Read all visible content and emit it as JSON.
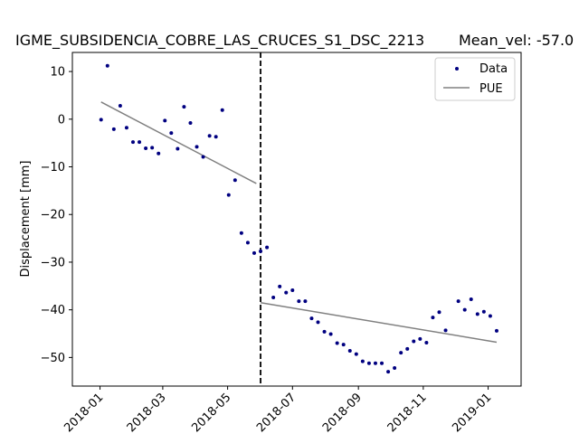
{
  "chart_data": {
    "type": "scatter",
    "title": "IGME_SUBSIDENCIA_COBRE_LAS_CRUCES_S1_DSC_2213",
    "subtitle": "Mean_vel: -57.0",
    "xlabel": "",
    "ylabel": "Displacement [mm]",
    "xlim": [
      "2017-12-06",
      "2019-02-01"
    ],
    "ylim": [
      -56,
      14
    ],
    "x_ticks": [
      "2018-01",
      "2018-03",
      "2018-05",
      "2018-07",
      "2018-09",
      "2018-11",
      "2019-01"
    ],
    "y_ticks": [
      10,
      0,
      -10,
      -20,
      -30,
      -40,
      -50
    ],
    "y_tick_labels": [
      "10",
      "0",
      "−10",
      "−20",
      "−30",
      "−40",
      "−50"
    ],
    "grid": false,
    "legend": "top-right",
    "breakpoint_date": "2018-06-01",
    "colors": {
      "data": "#000080",
      "fit": "#808080",
      "breakpoint": "#000000"
    },
    "series": [
      {
        "name": "Data",
        "style": "points",
        "points": [
          [
            "2018-01-02",
            -0.1
          ],
          [
            "2018-01-08",
            11.2
          ],
          [
            "2018-01-14",
            -2.1
          ],
          [
            "2018-01-20",
            2.8
          ],
          [
            "2018-01-26",
            -1.8
          ],
          [
            "2018-02-01",
            -4.8
          ],
          [
            "2018-02-07",
            -4.8
          ],
          [
            "2018-02-13",
            -6.1
          ],
          [
            "2018-02-19",
            -6.0
          ],
          [
            "2018-02-25",
            -7.2
          ],
          [
            "2018-03-03",
            -0.3
          ],
          [
            "2018-03-09",
            -2.9
          ],
          [
            "2018-03-15",
            -6.2
          ],
          [
            "2018-03-21",
            2.6
          ],
          [
            "2018-03-27",
            -0.8
          ],
          [
            "2018-04-02",
            -5.8
          ],
          [
            "2018-04-08",
            -7.9
          ],
          [
            "2018-04-14",
            -3.5
          ],
          [
            "2018-04-20",
            -3.7
          ],
          [
            "2018-04-26",
            1.9
          ],
          [
            "2018-05-02",
            -15.9
          ],
          [
            "2018-05-08",
            -12.8
          ],
          [
            "2018-05-14",
            -23.9
          ],
          [
            "2018-05-20",
            -25.9
          ],
          [
            "2018-05-26",
            -28.1
          ],
          [
            "2018-06-01",
            -27.7
          ],
          [
            "2018-06-07",
            -26.9
          ],
          [
            "2018-06-13",
            -37.4
          ],
          [
            "2018-06-19",
            -35.1
          ],
          [
            "2018-06-25",
            -36.4
          ],
          [
            "2018-07-01",
            -35.9
          ],
          [
            "2018-07-07",
            -38.2
          ],
          [
            "2018-07-13",
            -38.2
          ],
          [
            "2018-07-19",
            -41.8
          ],
          [
            "2018-07-25",
            -42.6
          ],
          [
            "2018-07-31",
            -44.6
          ],
          [
            "2018-08-06",
            -45.1
          ],
          [
            "2018-08-12",
            -47.0
          ],
          [
            "2018-08-18",
            -47.3
          ],
          [
            "2018-08-24",
            -48.6
          ],
          [
            "2018-08-30",
            -49.3
          ],
          [
            "2018-09-05",
            -50.8
          ],
          [
            "2018-09-11",
            -51.2
          ],
          [
            "2018-09-17",
            -51.2
          ],
          [
            "2018-09-23",
            -51.2
          ],
          [
            "2018-09-29",
            -53.0
          ],
          [
            "2018-10-05",
            -52.2
          ],
          [
            "2018-10-11",
            -49.0
          ],
          [
            "2018-10-17",
            -48.2
          ],
          [
            "2018-10-23",
            -46.6
          ],
          [
            "2018-10-29",
            -46.1
          ],
          [
            "2018-11-04",
            -46.9
          ],
          [
            "2018-11-10",
            -41.6
          ],
          [
            "2018-11-16",
            -40.5
          ],
          [
            "2018-11-22",
            -44.3
          ],
          [
            "2018-12-04",
            -38.2
          ],
          [
            "2018-12-10",
            -40.0
          ],
          [
            "2018-12-16",
            -37.8
          ],
          [
            "2018-12-22",
            -40.9
          ],
          [
            "2018-12-28",
            -40.4
          ],
          [
            "2019-01-03",
            -41.3
          ],
          [
            "2019-01-09",
            -44.4
          ]
        ]
      },
      {
        "name": "PUE",
        "style": "line",
        "segments": [
          [
            [
              "2018-01-02",
              3.6
            ],
            [
              "2018-05-28",
              -13.5
            ]
          ],
          [
            [
              "2018-06-01",
              -38.5
            ],
            [
              "2019-01-09",
              -46.8
            ]
          ]
        ]
      }
    ]
  }
}
